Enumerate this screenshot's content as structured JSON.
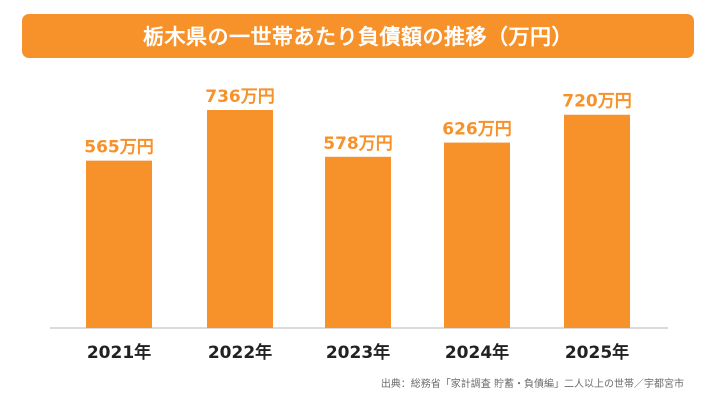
{
  "title": "栃木県の一世帯あたり負債額の推移（万円）",
  "source": "出典：総務省「家計調査 貯蓄・負債編」二人以上の世帯／宇都宮市",
  "colors": {
    "bar": "#f7922b",
    "label": "#f7922b",
    "axis": "#cfcfcf",
    "tick": "#222222",
    "banner": "#f7922b"
  },
  "chart_data": {
    "type": "bar",
    "title": "栃木県の一世帯あたり負債額の推移（万円）",
    "xlabel": "",
    "ylabel": "",
    "unit": "万円",
    "categories": [
      "2021年",
      "2022年",
      "2023年",
      "2024年",
      "2025年"
    ],
    "values": [
      565,
      736,
      578,
      626,
      720
    ],
    "data_labels": [
      "565万円",
      "736万円",
      "578万円",
      "626万円",
      "720万円"
    ],
    "ylim": [
      0,
      800
    ],
    "grid": false,
    "legend": "none"
  }
}
